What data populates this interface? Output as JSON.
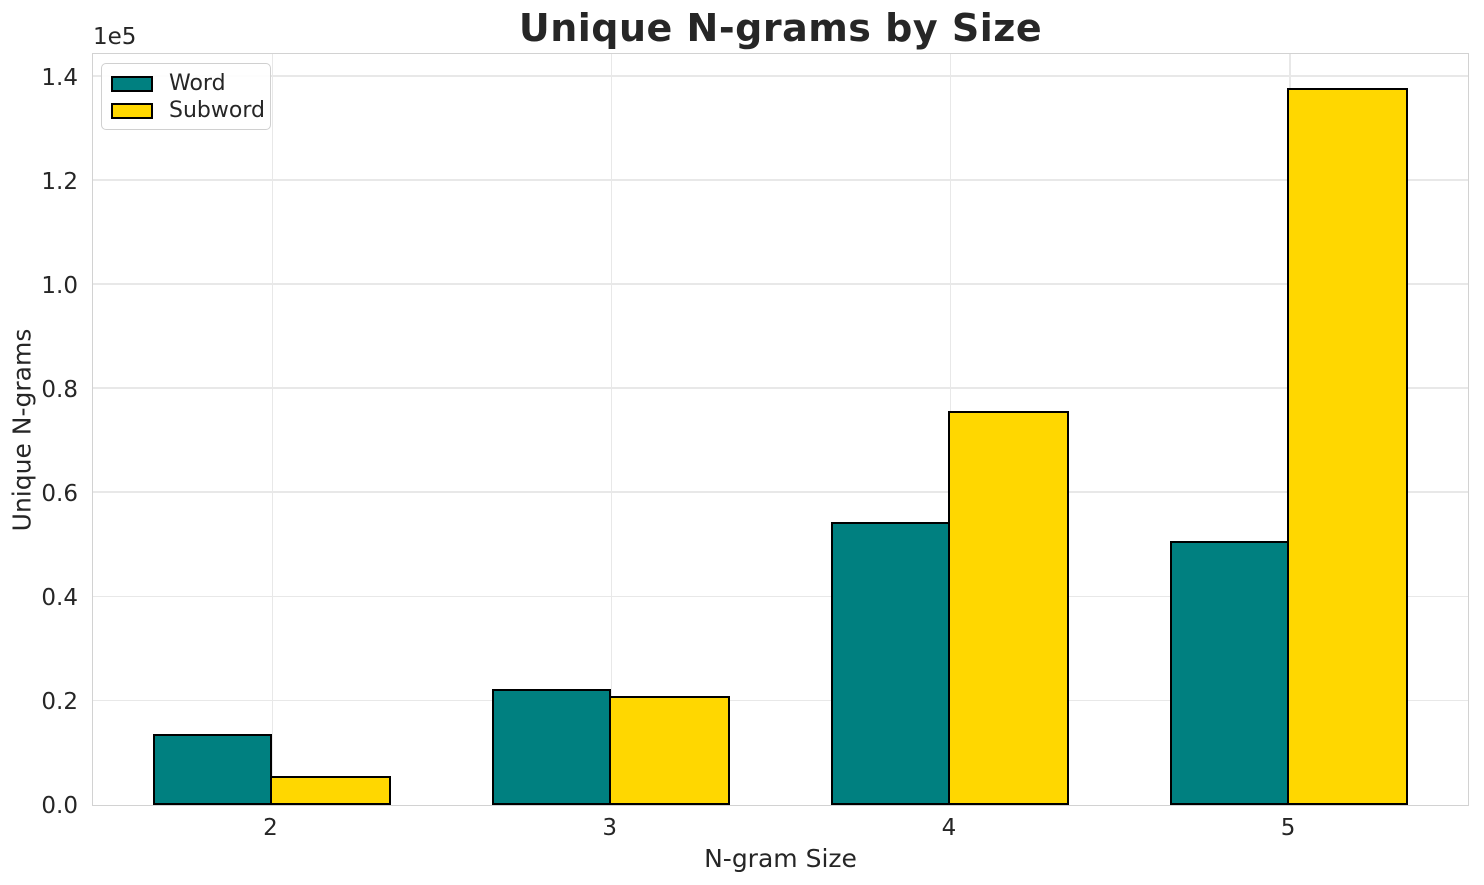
{
  "chart_data": {
    "type": "bar",
    "title": "Unique N-grams by Size",
    "xlabel": "N-gram Size",
    "ylabel": "Unique N-grams",
    "y_offset_text": "1e5",
    "categories": [
      "2",
      "3",
      "4",
      "5"
    ],
    "series": [
      {
        "name": "Word",
        "color": "#008080",
        "values": [
          13700,
          22300,
          54500,
          50700
        ]
      },
      {
        "name": "Subword",
        "color": "#FFD700",
        "values": [
          5600,
          21000,
          75800,
          137800
        ]
      }
    ],
    "bar_edge_color": "#000000",
    "ylim": [
      0,
      144800
    ],
    "yticks": {
      "values": [
        0,
        20000,
        40000,
        60000,
        80000,
        100000,
        120000,
        140000
      ],
      "labels": [
        "0.0",
        "0.2",
        "0.4",
        "0.6",
        "0.8",
        "1.0",
        "1.2",
        "1.4"
      ]
    },
    "grid": true,
    "legend_position": "upper left"
  }
}
